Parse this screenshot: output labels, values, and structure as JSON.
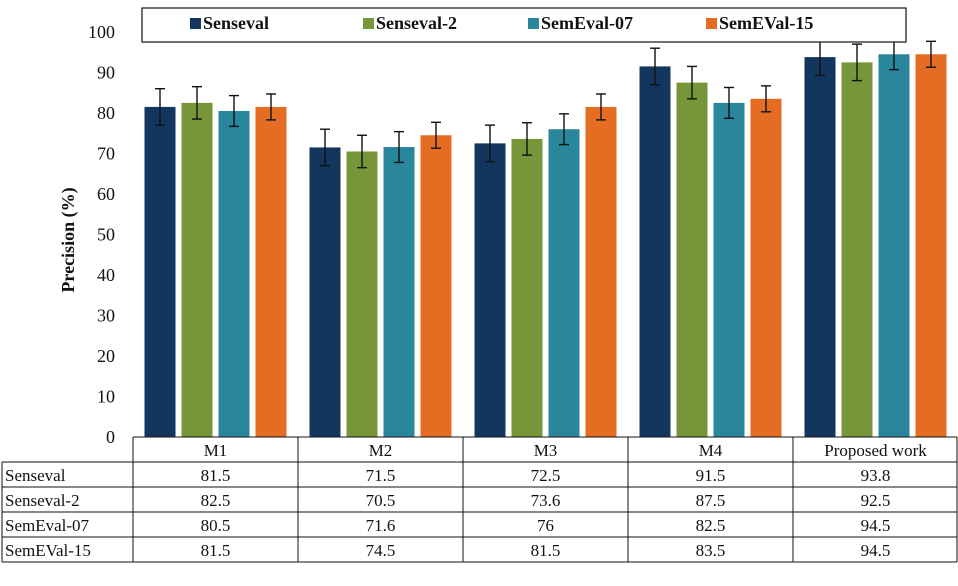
{
  "chart_data": {
    "type": "bar",
    "ylabel": "Precision (%)",
    "ylim": [
      0,
      100
    ],
    "yticks": [
      0,
      10,
      20,
      30,
      40,
      50,
      60,
      70,
      80,
      90,
      100
    ],
    "categories": [
      "M1",
      "M2",
      "M3",
      "M4",
      "Proposed work"
    ],
    "legend_position": "top",
    "grid": false,
    "error_bars": true,
    "data_table": true,
    "series": [
      {
        "name": "Senseval",
        "color": "#13365e",
        "values": [
          81.5,
          71.5,
          72.5,
          91.5,
          93.8
        ],
        "labels": [
          "81.5",
          "71.5",
          "72.5",
          "91.5",
          "93.8"
        ],
        "errors": [
          4.5,
          4.5,
          4.5,
          4.5,
          4.5
        ]
      },
      {
        "name": "Senseval-2",
        "color": "#77963a",
        "values": [
          82.5,
          70.5,
          73.6,
          87.5,
          92.5
        ],
        "labels": [
          "82.5",
          "70.5",
          "73.6",
          "87.5",
          "92.5"
        ],
        "errors": [
          4.0,
          4.0,
          4.0,
          4.0,
          4.5
        ]
      },
      {
        "name": "SemEval-07",
        "color": "#2a869d",
        "values": [
          80.5,
          71.6,
          76.0,
          82.5,
          94.5
        ],
        "labels": [
          "80.5",
          "71.6",
          "76",
          "82.5",
          "94.5"
        ],
        "errors": [
          3.8,
          3.8,
          3.8,
          3.8,
          3.8
        ]
      },
      {
        "name": "SemEVal-15",
        "color": "#e46c23",
        "values": [
          81.5,
          74.5,
          81.5,
          83.5,
          94.5
        ],
        "labels": [
          "81.5",
          "74.5",
          "81.5",
          "83.5",
          "94.5"
        ],
        "errors": [
          3.2,
          3.2,
          3.2,
          3.2,
          3.2
        ]
      }
    ]
  }
}
